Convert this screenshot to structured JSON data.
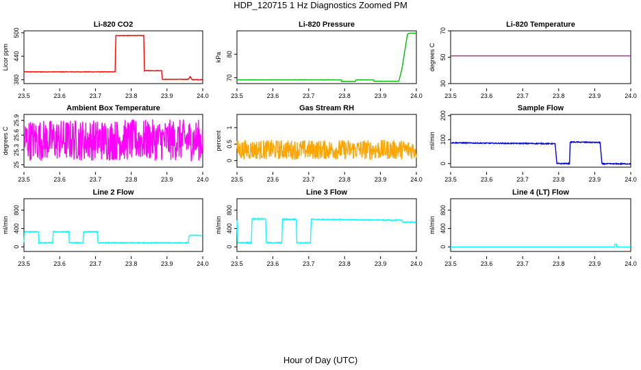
{
  "figure": {
    "title": "HDP_120715  1 Hz Diagnostics Zoomed PM",
    "xlabel": "Hour of Day (UTC)"
  },
  "chart_data": [
    {
      "type": "line",
      "title": "Li-820 CO2",
      "ylabel": "Licor ppm",
      "color": "#ff0000",
      "xlim": [
        23.5,
        24.0
      ],
      "ylim": [
        370,
        505
      ],
      "xticks": [
        "23.5",
        "23.6",
        "23.7",
        "23.8",
        "23.9",
        "24.0"
      ],
      "yticks": [
        380,
        440,
        500
      ],
      "series": [
        {
          "x": [
            23.5,
            23.755,
            23.757,
            23.835,
            23.837,
            23.885,
            23.887,
            23.96,
            23.965,
            23.97,
            24.0
          ],
          "y": [
            400,
            400,
            493,
            493,
            403,
            403,
            381,
            381,
            388,
            380,
            380
          ],
          "noise": 0.6
        }
      ]
    },
    {
      "type": "line",
      "title": "Li-820 Pressure",
      "ylabel": "kPa",
      "color": "#00bb00",
      "xlim": [
        23.5,
        24.0
      ],
      "ylim": [
        67.5,
        90
      ],
      "xticks": [
        "23.5",
        "23.6",
        "23.7",
        "23.8",
        "23.9",
        "24.0"
      ],
      "yticks": [
        70,
        80
      ],
      "series": [
        {
          "x": [
            23.5,
            23.79,
            23.792,
            23.83,
            23.832,
            23.88,
            23.882,
            23.95,
            23.952,
            23.96,
            23.975,
            23.98,
            24.0
          ],
          "y": [
            69.1,
            69.1,
            68.4,
            68.4,
            69.1,
            69.1,
            68.5,
            68.5,
            69.0,
            74,
            88.5,
            89,
            89
          ],
          "noise": 0.05
        }
      ]
    },
    {
      "type": "line",
      "title": "Li-820 Temperature",
      "ylabel": "degrees C",
      "color": "#e0008a",
      "xlim": [
        23.5,
        24.0
      ],
      "ylim": [
        30,
        70
      ],
      "xticks": [
        "23.5",
        "23.6",
        "23.7",
        "23.8",
        "23.9",
        "24.0"
      ],
      "yticks": [
        30,
        50,
        70
      ],
      "series": [
        {
          "x": [
            23.5,
            24.0
          ],
          "y": [
            51,
            51
          ],
          "noise": 0
        }
      ]
    },
    {
      "type": "line",
      "title": "Ambient Box Temperature",
      "ylabel": "degrees C",
      "color": "#ff00ff",
      "xlim": [
        23.5,
        24.0
      ],
      "ylim": [
        24.95,
        26.02
      ],
      "xticks": [
        "23.5",
        "23.6",
        "23.7",
        "23.8",
        "23.9",
        "24.0"
      ],
      "yticks": [
        25.0,
        25.3,
        25.6,
        25.9
      ],
      "series": [
        {
          "x": [
            23.5,
            24.0
          ],
          "y": [
            25.5,
            25.5
          ],
          "noise": 0.42
        }
      ]
    },
    {
      "type": "line",
      "title": "Gas Stream RH",
      "ylabel": "percent",
      "color": "#ffa500",
      "xlim": [
        23.5,
        24.0
      ],
      "ylim": [
        -0.2,
        1.4
      ],
      "xticks": [
        "23.5",
        "23.6",
        "23.7",
        "23.8",
        "23.9",
        "24.0"
      ],
      "yticks": [
        0.0,
        0.5,
        1.0
      ],
      "series": [
        {
          "x": [
            23.5,
            24.0
          ],
          "y": [
            0.33,
            0.33
          ],
          "noise": 0.3
        }
      ]
    },
    {
      "type": "line",
      "title": "Sample Flow",
      "ylabel": "ml/min",
      "color": "#0000dd",
      "xlim": [
        23.5,
        24.0
      ],
      "ylim": [
        -15,
        205
      ],
      "xticks": [
        "23.5",
        "23.6",
        "23.7",
        "23.8",
        "23.9",
        "24.0"
      ],
      "yticks": [
        0,
        100,
        200
      ],
      "series": [
        {
          "x": [
            23.5,
            23.6,
            23.7,
            23.79,
            23.795,
            23.83,
            23.832,
            23.915,
            23.92,
            24.0
          ],
          "y": [
            87,
            85,
            84,
            83,
            0,
            0,
            90,
            88,
            -1,
            -1
          ],
          "noise": 2
        }
      ]
    },
    {
      "type": "line",
      "title": "Line 2 Flow",
      "ylabel": "ml/min",
      "color": "#00ffff",
      "xlim": [
        23.5,
        24.0
      ],
      "ylim": [
        -100,
        1050
      ],
      "xticks": [
        "23.5",
        "23.6",
        "23.7",
        "23.8",
        "23.9",
        "24.0"
      ],
      "yticks": [
        0,
        400,
        800
      ],
      "series": [
        {
          "x": [
            23.5,
            23.502,
            23.54,
            23.542,
            23.58,
            23.582,
            23.625,
            23.627,
            23.665,
            23.667,
            23.705,
            23.707,
            23.96,
            23.962,
            24.0
          ],
          "y": [
            100,
            330,
            330,
            90,
            90,
            330,
            330,
            90,
            90,
            330,
            330,
            90,
            90,
            250,
            250
          ],
          "noise": 8
        }
      ]
    },
    {
      "type": "line",
      "title": "Line 3 Flow",
      "ylabel": "ml/min",
      "color": "#00ffff",
      "xlim": [
        23.5,
        24.0
      ],
      "ylim": [
        -100,
        1050
      ],
      "xticks": [
        "23.5",
        "23.6",
        "23.7",
        "23.8",
        "23.9",
        "24.0"
      ],
      "yticks": [
        0,
        400,
        800
      ],
      "series": [
        {
          "x": [
            23.5,
            23.502,
            23.54,
            23.542,
            23.58,
            23.582,
            23.625,
            23.627,
            23.665,
            23.667,
            23.705,
            23.707,
            23.96,
            23.962,
            24.0
          ],
          "y": [
            580,
            90,
            90,
            610,
            610,
            90,
            90,
            600,
            600,
            90,
            90,
            600,
            580,
            540,
            540
          ],
          "noise": 10
        }
      ]
    },
    {
      "type": "line",
      "title": "Line 4 (LT) Flow",
      "ylabel": "ml/min",
      "color": "#00ffff",
      "xlim": [
        23.5,
        24.0
      ],
      "ylim": [
        -100,
        1050
      ],
      "xticks": [
        "23.5",
        "23.6",
        "23.7",
        "23.8",
        "23.9",
        "24.0"
      ],
      "yticks": [
        0,
        400,
        800
      ],
      "series": [
        {
          "x": [
            23.5,
            23.955,
            23.956,
            23.96,
            23.961,
            24.0
          ],
          "y": [
            0,
            0,
            60,
            60,
            0,
            0
          ],
          "noise": 0
        }
      ]
    }
  ]
}
